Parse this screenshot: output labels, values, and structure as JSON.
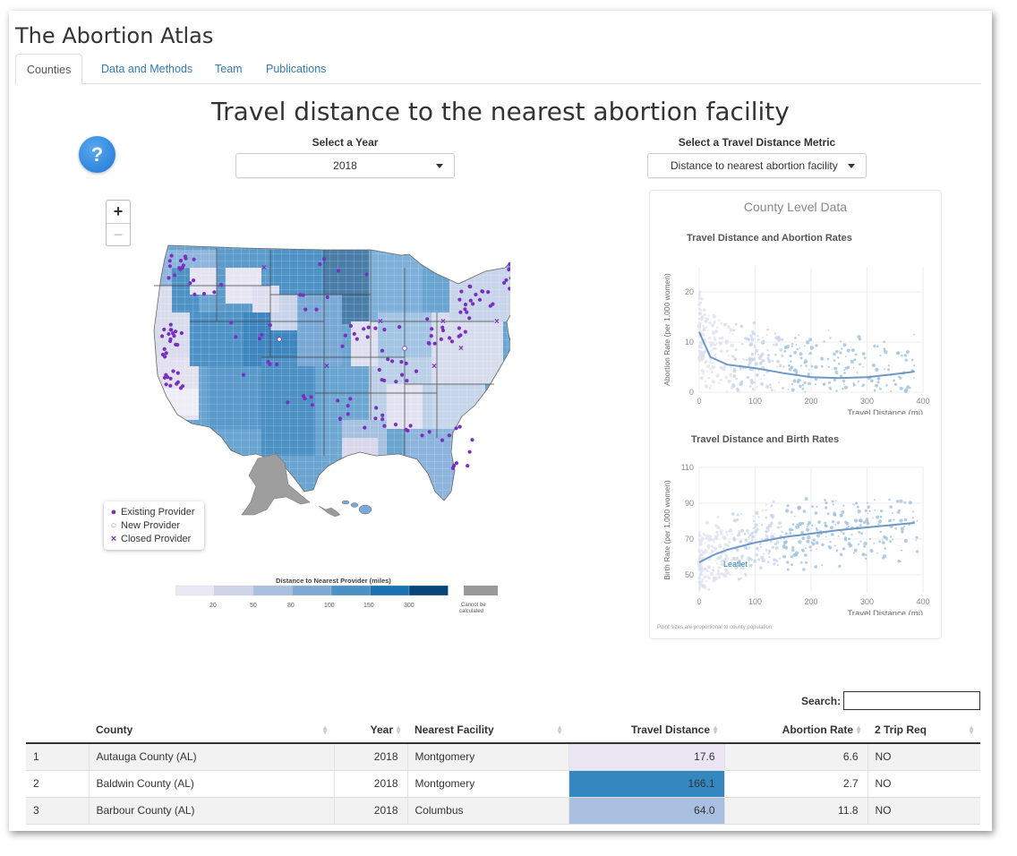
{
  "app": {
    "title": "The Abortion Atlas"
  },
  "tabs": [
    {
      "label": "Counties",
      "active": true
    },
    {
      "label": "Data and Methods",
      "active": false
    },
    {
      "label": "Team",
      "active": false
    },
    {
      "label": "Publications",
      "active": false
    }
  ],
  "main": {
    "title": "Travel distance to the nearest abortion facility",
    "help_label": "?",
    "year_select": {
      "label": "Select a Year",
      "value": "2018"
    },
    "metric_select": {
      "label": "Select a Travel Distance Metric",
      "value": "Distance to nearest abortion facility"
    }
  },
  "map": {
    "zoom_in": "+",
    "zoom_out": "−",
    "legend": {
      "existing": "Existing Provider",
      "new": "New Provider",
      "closed": "Closed Provider"
    },
    "scale": {
      "title": "Distance to Nearest Provider (miles)",
      "breaks": [
        "20",
        "50",
        "80",
        "100",
        "150",
        "300"
      ],
      "na_label_1": "Cannot be",
      "na_label_2": "calculated",
      "colors": [
        "#ebe8f3",
        "#cfd4e8",
        "#a9bfde",
        "#7fa9d3",
        "#4c91c3",
        "#1a72b0",
        "#08467a"
      ],
      "na_color": "#999999"
    },
    "provider_color": "#7a2fbf"
  },
  "panel": {
    "title": "County Level Data",
    "note": "Point sizes are proportional to county population",
    "watermark": "Leaflet"
  },
  "chart_data": [
    {
      "type": "scatter",
      "title": "Travel Distance and Abortion Rates",
      "xlabel": "Travel Distance (mi)",
      "ylabel": "Abortion Rate (per 1,000 women)",
      "xlim": [
        0,
        400
      ],
      "ylim": [
        0,
        25
      ],
      "xticks": [
        "0",
        "100",
        "200",
        "300",
        "400"
      ],
      "yticks": [
        "0",
        "10",
        "20"
      ],
      "trend": {
        "x": [
          0,
          20,
          50,
          100,
          150,
          200,
          250,
          300,
          350,
          385
        ],
        "y": [
          12,
          7,
          5.5,
          4.8,
          3.8,
          3.0,
          2.8,
          3.0,
          3.6,
          4.1
        ]
      }
    },
    {
      "type": "scatter",
      "title": "Travel Distance and Birth Rates",
      "xlabel": "Travel Distance (mi)",
      "ylabel": "Birth Rate (per 1,000 women)",
      "xlim": [
        0,
        400
      ],
      "ylim": [
        40,
        110
      ],
      "xticks": [
        "0",
        "100",
        "200",
        "300",
        "400"
      ],
      "yticks": [
        "50",
        "70",
        "90",
        "110"
      ],
      "trend": {
        "x": [
          0,
          25,
          50,
          100,
          150,
          200,
          250,
          300,
          350,
          385
        ],
        "y": [
          57,
          61,
          64,
          68,
          71,
          73,
          75,
          76.5,
          78,
          79
        ]
      }
    }
  ],
  "table": {
    "search_label": "Search:",
    "search_value": "",
    "columns": [
      "",
      "County",
      "Year",
      "Nearest Facility",
      "Travel Distance",
      "Abortion Rate",
      "2 Trip Req"
    ],
    "rows": [
      {
        "n": "1",
        "county": "Autauga County (AL)",
        "year": "2018",
        "facility": "Montgomery",
        "distance": "17.6",
        "rate": "6.6",
        "trip": "NO",
        "color": "#e9e5f3"
      },
      {
        "n": "2",
        "county": "Baldwin County (AL)",
        "year": "2018",
        "facility": "Montgomery",
        "distance": "166.1",
        "rate": "2.7",
        "trip": "NO",
        "color": "#3388c0"
      },
      {
        "n": "3",
        "county": "Barbour County (AL)",
        "year": "2018",
        "facility": "Columbus",
        "distance": "64.0",
        "rate": "11.8",
        "trip": "NO",
        "color": "#a8bfe0"
      }
    ]
  }
}
